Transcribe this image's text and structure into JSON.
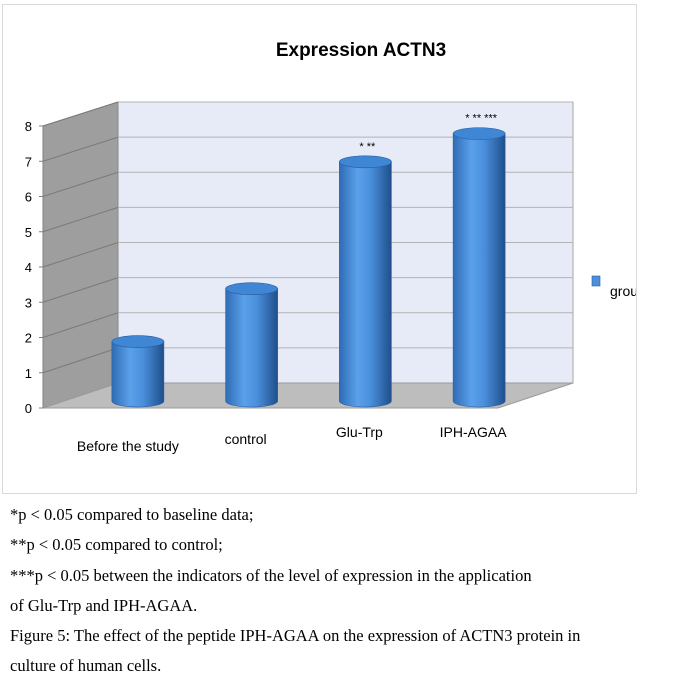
{
  "chart_data": {
    "type": "bar",
    "title": "Expression ACTN3",
    "categories": [
      "Before the study",
      "control",
      "Glu-Trp",
      "IPH-AGAA"
    ],
    "series": [
      {
        "name": "groups",
        "values": [
          1.6,
          3.1,
          6.7,
          7.5
        ],
        "color": "#4a8fdb"
      }
    ],
    "annotations": [
      "",
      "",
      "* **",
      "* ** ***"
    ],
    "xlabel": "",
    "ylabel": "",
    "ylim": [
      0,
      8
    ],
    "yticks": [
      0,
      1,
      2,
      3,
      4,
      5,
      6,
      7,
      8
    ],
    "grid": true,
    "legend": "right",
    "style": "3d-cylinder"
  },
  "captions": [
    "*p < 0.05 compared to baseline data;",
    "**p < 0.05 compared to control;",
    "***p < 0.05 between the indicators of the level of expression in the application",
    "of Glu-Trp and IPH-AGAA.",
    "Figure 5: The effect of the peptide IPH-AGAA on the expression of ACTN3 protein in",
    "culture of human cells."
  ]
}
